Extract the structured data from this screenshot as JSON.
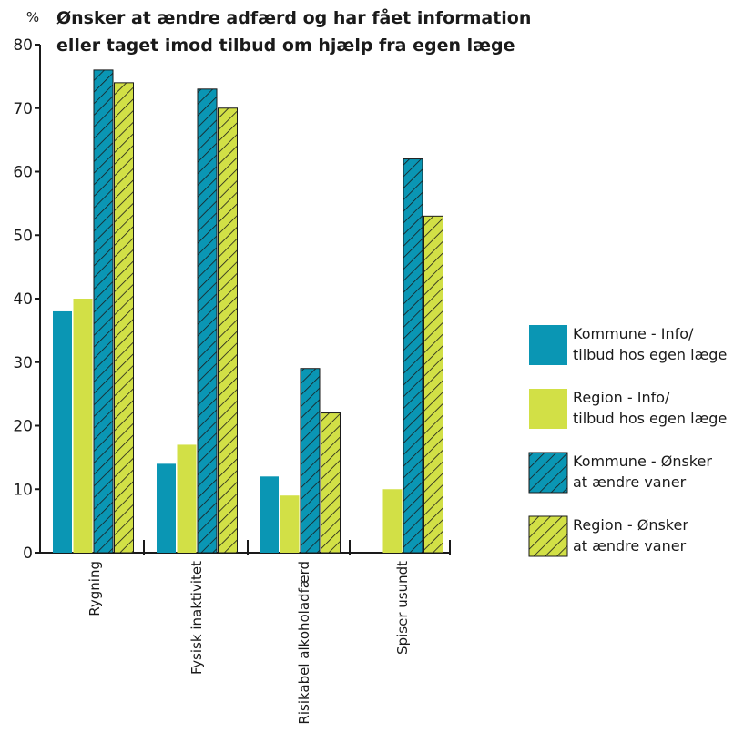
{
  "chart_data": {
    "type": "bar",
    "title": [
      "Ønsker at ændre adfærd og har fået information",
      "eller taget imod tilbud om hjælp fra egen læge"
    ],
    "ylabel": "%",
    "ylim": [
      0,
      80
    ],
    "yticks": [
      0,
      10,
      20,
      30,
      40,
      50,
      60,
      70,
      80
    ],
    "categories": [
      "Rygning",
      "Fysisk inaktivitet",
      "Risikabel alkoholadfærd",
      "Spiser usundt"
    ],
    "series": [
      {
        "name": [
          "Kommune - Info/",
          "tilbud hos egen læge"
        ],
        "color": "#0a96b4",
        "pattern": "solid",
        "values": [
          38,
          14,
          12,
          0
        ]
      },
      {
        "name": [
          "Region - Info/",
          "tilbud hos egen læge"
        ],
        "color": "#d2e046",
        "pattern": "solid",
        "values": [
          40,
          17,
          9,
          10
        ]
      },
      {
        "name": [
          "Kommune - Ønsker",
          "at ændre vaner"
        ],
        "color": "#0a96b4",
        "pattern": "hatched",
        "values": [
          76,
          73,
          29,
          62
        ]
      },
      {
        "name": [
          "Region - Ønsker",
          "at ændre vaner"
        ],
        "color": "#d2e046",
        "pattern": "hatched",
        "values": [
          74,
          70,
          22,
          53
        ]
      }
    ],
    "legend_position": "right",
    "grid": false
  }
}
